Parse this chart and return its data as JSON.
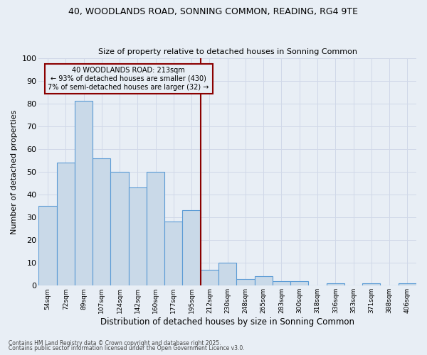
{
  "title1": "40, WOODLANDS ROAD, SONNING COMMON, READING, RG4 9TE",
  "title2": "Size of property relative to detached houses in Sonning Common",
  "xlabel": "Distribution of detached houses by size in Sonning Common",
  "ylabel": "Number of detached properties",
  "categories": [
    "54sqm",
    "72sqm",
    "89sqm",
    "107sqm",
    "124sqm",
    "142sqm",
    "160sqm",
    "177sqm",
    "195sqm",
    "212sqm",
    "230sqm",
    "248sqm",
    "265sqm",
    "283sqm",
    "300sqm",
    "318sqm",
    "336sqm",
    "353sqm",
    "371sqm",
    "388sqm",
    "406sqm"
  ],
  "values": [
    35,
    54,
    81,
    56,
    50,
    43,
    50,
    28,
    33,
    7,
    10,
    3,
    4,
    2,
    2,
    0,
    1,
    0,
    1,
    0,
    1
  ],
  "bar_color": "#c9d9e8",
  "bar_edge_color": "#5b9bd5",
  "vline_index": 9,
  "vline_color": "#8b0000",
  "annotation_title": "40 WOODLANDS ROAD: 213sqm",
  "annotation_line1": "← 93% of detached houses are smaller (430)",
  "annotation_line2": "7% of semi-detached houses are larger (32) →",
  "annotation_box_color": "#8b0000",
  "ylim": [
    0,
    100
  ],
  "yticks": [
    0,
    10,
    20,
    30,
    40,
    50,
    60,
    70,
    80,
    90,
    100
  ],
  "grid_color": "#d0d8e8",
  "bg_color": "#e8eef5",
  "footer1": "Contains HM Land Registry data © Crown copyright and database right 2025.",
  "footer2": "Contains public sector information licensed under the Open Government Licence v3.0."
}
